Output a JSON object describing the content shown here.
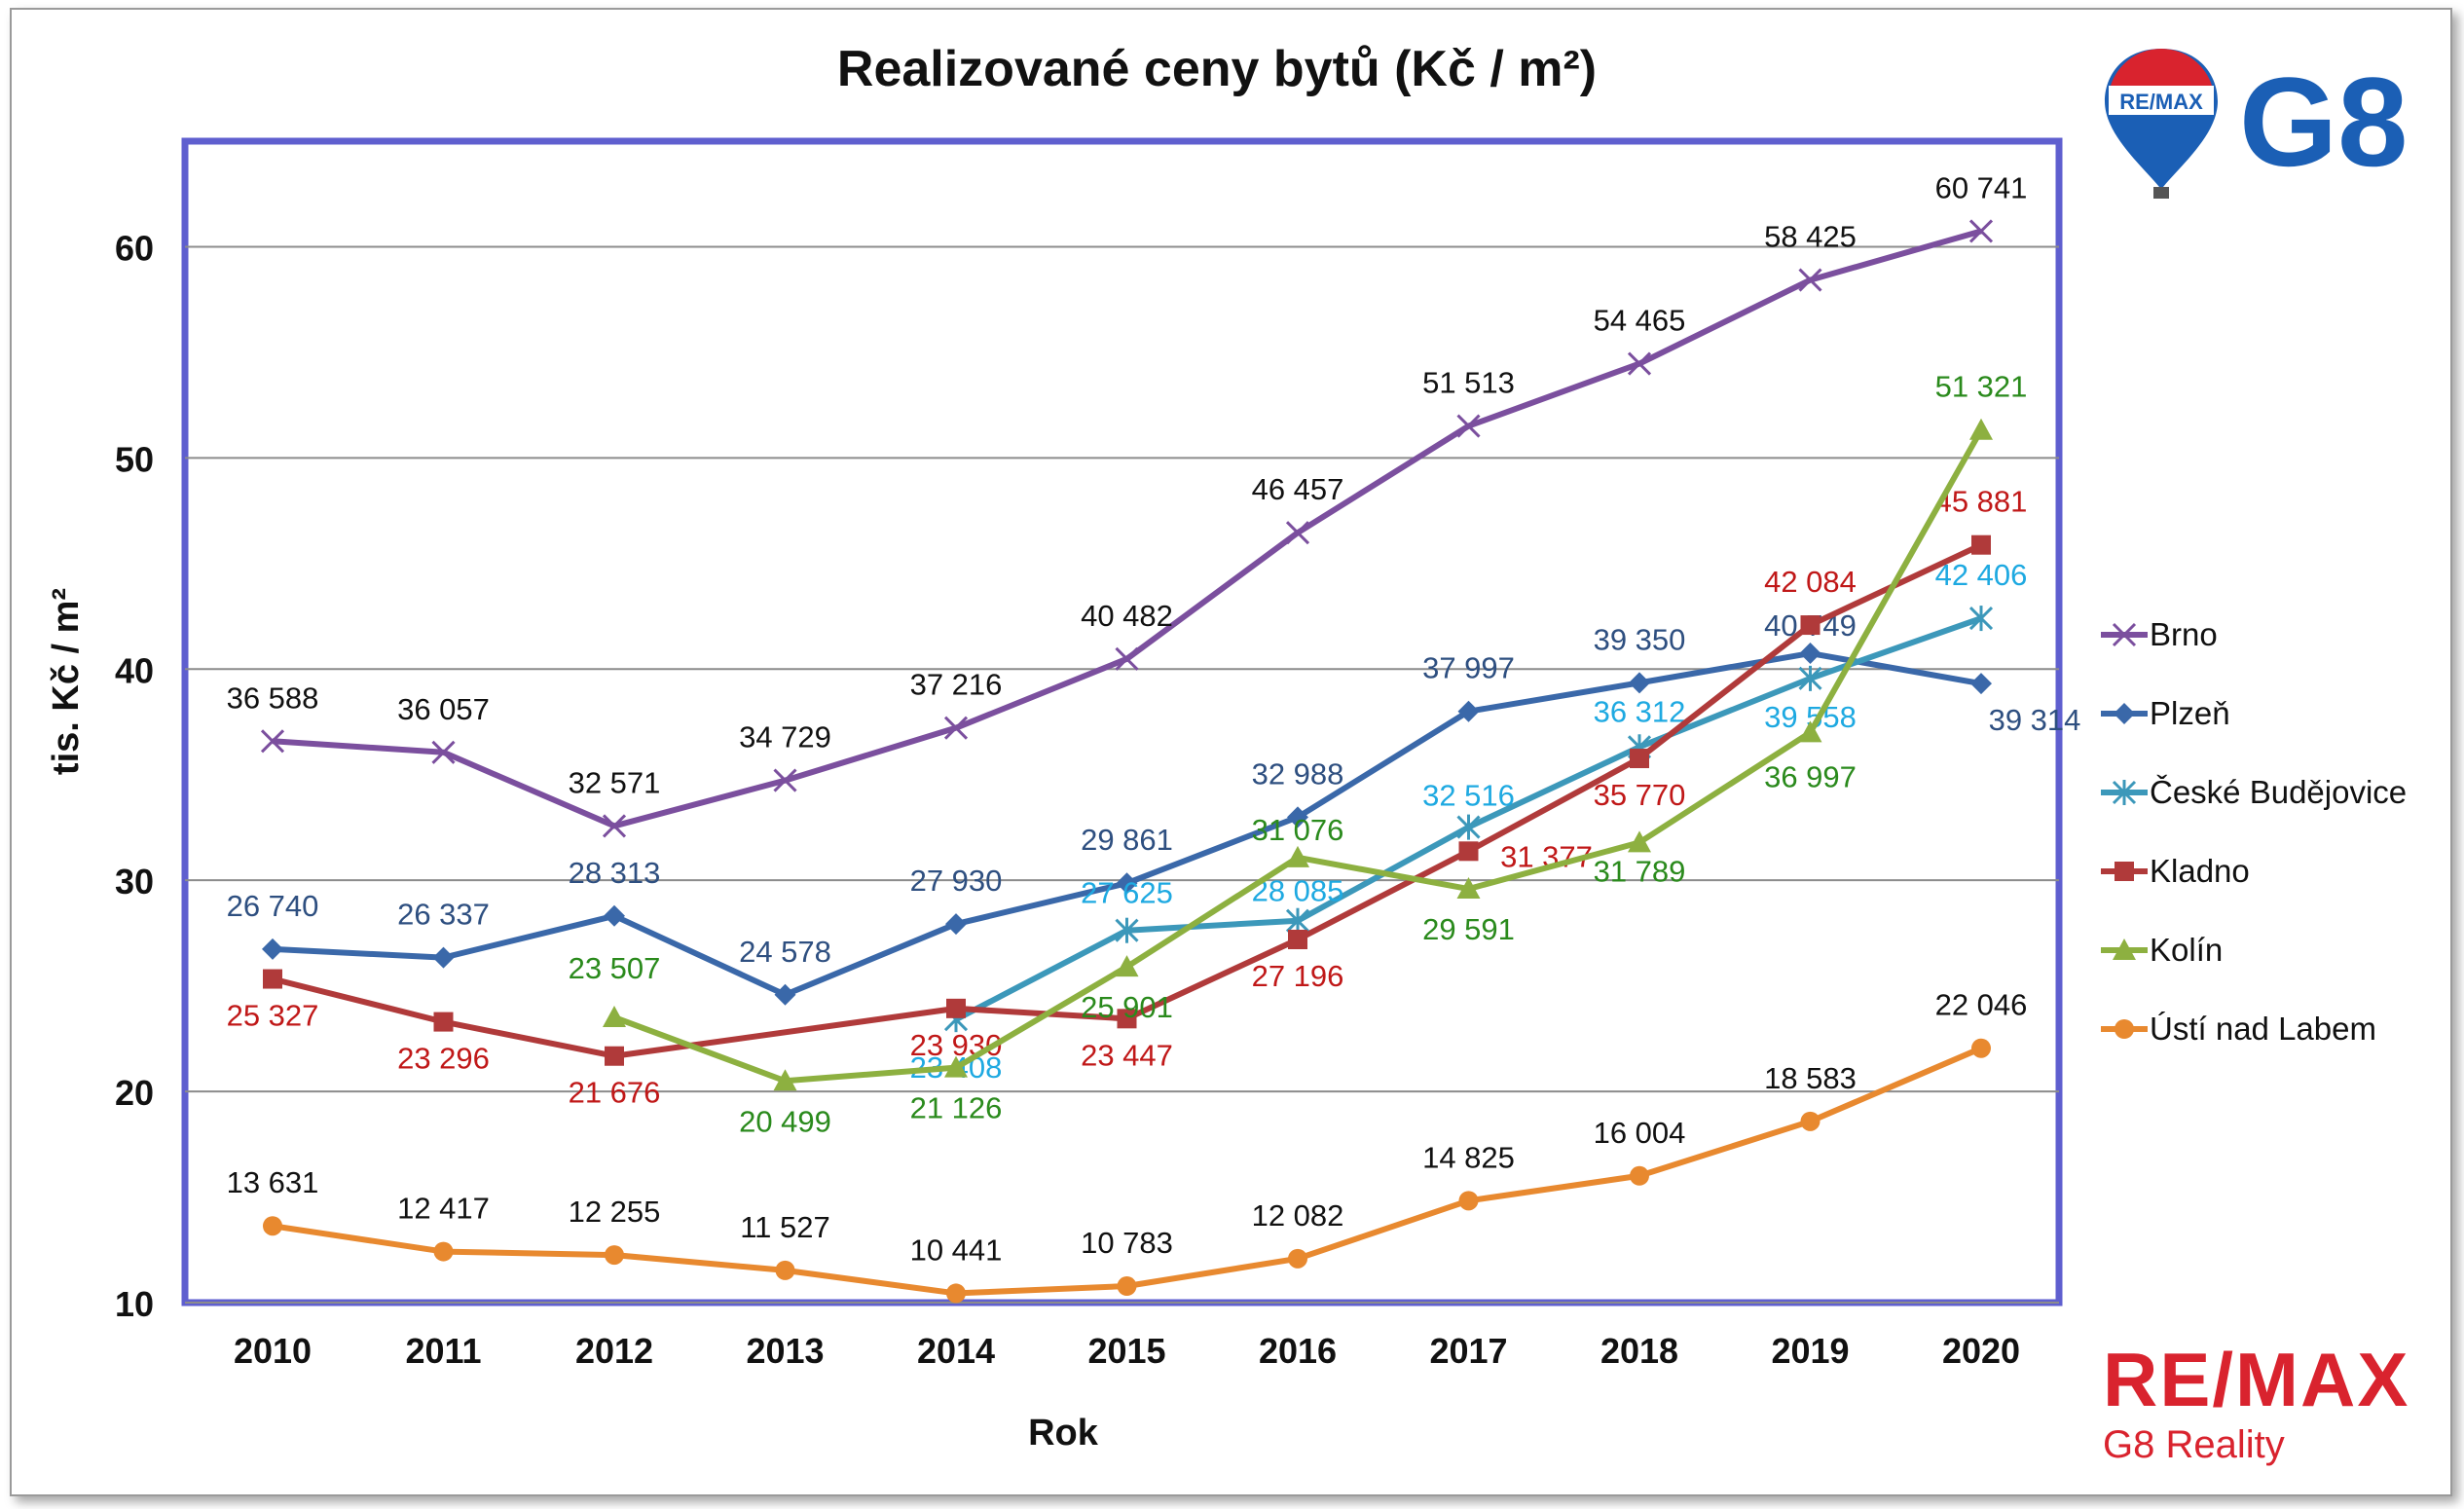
{
  "title": "Realizované ceny bytů (Kč / m²)",
  "logo": {
    "balloon_text": "RE/MAX",
    "g8_text": "G8"
  },
  "branding": {
    "remax": "RE/MAX",
    "sub": "G8 Reality"
  },
  "colors": {
    "Brno": "#7b4f9e",
    "Plzeň": "#3a68a9",
    "České Budějovice": "#3c98ba",
    "Kladno": "#b03a3a",
    "Kolín": "#8db040",
    "Ústí nad Labem": "#e8892f"
  },
  "chart_data": {
    "type": "line",
    "title": "Realizované ceny bytů (Kč / m²)",
    "xlabel": "Rok",
    "ylabel": "tis. Kč / m²",
    "ylim": [
      10,
      65
    ],
    "yticks": [
      10,
      20,
      30,
      40,
      50,
      60
    ],
    "grid": true,
    "legend_position": "right",
    "categories": [
      "2010",
      "2011",
      "2012",
      "2013",
      "2014",
      "2015",
      "2016",
      "2017",
      "2018",
      "2019",
      "2020"
    ],
    "series": [
      {
        "name": "Brno",
        "marker": "x",
        "values": [
          36588,
          36057,
          32571,
          34729,
          37216,
          40482,
          46457,
          51513,
          54465,
          58425,
          60741
        ],
        "labels": [
          "36 588",
          "36 057",
          "32 571",
          "34 729",
          "37 216",
          "40 482",
          "46 457",
          "51 513",
          "54 465",
          "58 425",
          "60 741"
        ],
        "label_color": "#111111"
      },
      {
        "name": "Plzeň",
        "marker": "diamond",
        "values": [
          26740,
          26337,
          28313,
          24578,
          27930,
          29861,
          32988,
          37997,
          39350,
          40749,
          39314
        ],
        "labels": [
          "26 740",
          "26 337",
          "28 313",
          "24 578",
          "27 930",
          "29 861",
          "32 988",
          "37 997",
          "39 350",
          "40 749",
          "39 314"
        ],
        "label_color": "#2e4f80"
      },
      {
        "name": "České Budějovice",
        "marker": "asterisk",
        "values": [
          null,
          null,
          null,
          null,
          23408,
          27625,
          28085,
          32516,
          36312,
          39558,
          42406
        ],
        "labels": [
          "",
          "",
          "",
          "",
          "23 408",
          "27 625",
          "28 085",
          "32 516",
          "36 312",
          "39 558",
          "42 406"
        ],
        "label_color": "#1ea9e1"
      },
      {
        "name": "Kladno",
        "marker": "square",
        "values": [
          25327,
          23296,
          21676,
          null,
          23930,
          23447,
          27196,
          31377,
          35770,
          42084,
          45881
        ],
        "labels": [
          "25 327",
          "23 296",
          "21 676",
          "",
          "23 930",
          "23 447",
          "27 196",
          "31 377",
          "35 770",
          "42 084",
          "45 881"
        ],
        "label_color": "#c01818"
      },
      {
        "name": "Kolín",
        "marker": "triangle",
        "values": [
          null,
          null,
          23507,
          20499,
          21126,
          25901,
          31076,
          29591,
          31789,
          36997,
          51321
        ],
        "labels": [
          "",
          "",
          "23 507",
          "20 499",
          "21 126",
          "25 901",
          "31 076",
          "29 591",
          "31 789",
          "36 997",
          "51 321"
        ],
        "label_color": "#2a8a1c"
      },
      {
        "name": "Ústí nad Labem",
        "marker": "circle",
        "values": [
          13631,
          12417,
          12255,
          11527,
          10441,
          10783,
          12082,
          14825,
          16004,
          18583,
          22046
        ],
        "labels": [
          "13 631",
          "12 417",
          "12 255",
          "11 527",
          "10 441",
          "10 783",
          "12 082",
          "14 825",
          "16 004",
          "18 583",
          "22 046"
        ],
        "label_color": "#111111"
      }
    ]
  }
}
